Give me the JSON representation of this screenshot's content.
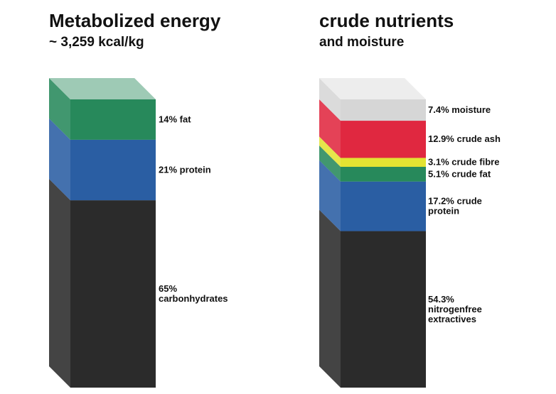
{
  "chart_data": [
    {
      "type": "stacked-bar",
      "title": "Metabolized energy",
      "subtitle": "~ 3,259 kcal/kg",
      "unit": "%",
      "series": [
        {
          "label": "65% carbonhydrates",
          "value": 65,
          "color": "#2b2b2b"
        },
        {
          "label": "21% protein",
          "value": 21,
          "color": "#2a5ea3"
        },
        {
          "label": "14% fat",
          "value": 14,
          "color": "#27895b"
        }
      ]
    },
    {
      "type": "stacked-bar",
      "title": "crude nutrients",
      "subtitle": "and moisture",
      "unit": "%",
      "series": [
        {
          "label": "54.3% nitrogenfree extractives",
          "value": 54.3,
          "color": "#2b2b2b"
        },
        {
          "label": "17.2% crude protein",
          "value": 17.2,
          "color": "#2a5ea3"
        },
        {
          "label": "5.1% crude fat",
          "value": 5.1,
          "color": "#27895b"
        },
        {
          "label": "3.1% crude fibre",
          "value": 3.1,
          "color": "#e3e332"
        },
        {
          "label": "12.9% crude ash",
          "value": 12.9,
          "color": "#e02840"
        },
        {
          "label": "7.4% moisture",
          "value": 7.4,
          "color": "#d6d6d6"
        }
      ]
    }
  ]
}
